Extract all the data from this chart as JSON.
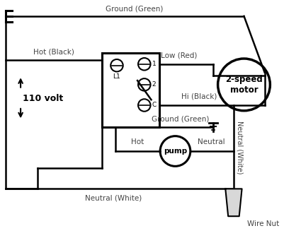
{
  "bg_color": "#ffffff",
  "line_color": "#000000",
  "lw": 1.8,
  "labels": {
    "ground_top": "Ground (Green)",
    "hot_black": "Hot (Black)",
    "low_red": "Low (Red)",
    "hi_black": "Hi (Black)",
    "ground_green": "Ground (Green)",
    "neutral_white_bottom": "Neutral (White)",
    "neutral_label": "Neutral",
    "hot_label": "Hot",
    "neutral_white_side": "Neutral (White)",
    "wire_nut": "Wire Nut",
    "voltage": "110 volt",
    "L1": "L1",
    "t1": "1",
    "t2": "2",
    "tC": "C",
    "pump": "pump",
    "motor": "2-speed\nmotor"
  },
  "fs": 7.5,
  "fs_small": 6.5,
  "fs_motor": 8.5,
  "fs_voltage": 9
}
